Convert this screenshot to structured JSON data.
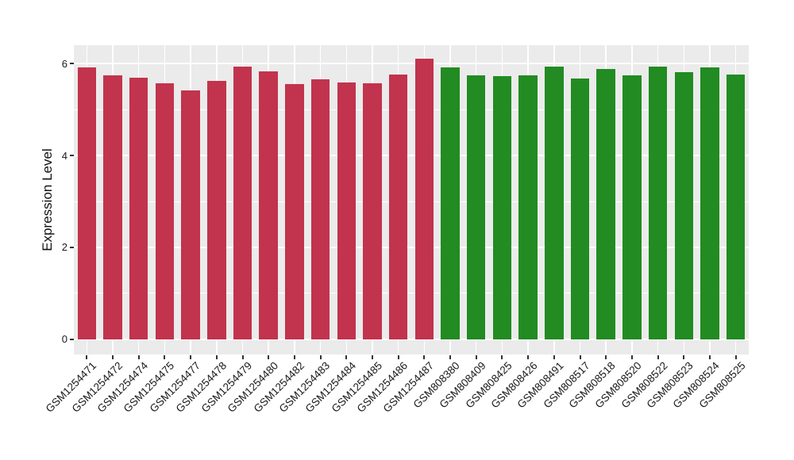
{
  "chart_data": {
    "type": "bar",
    "title": "",
    "xlabel": "",
    "ylabel": "Expression Level",
    "ylim": [
      -0.33,
      6.4
    ],
    "yticks": [
      0,
      2,
      4,
      6
    ],
    "yticks_minor": [
      1,
      3,
      5
    ],
    "grid": true,
    "legend": false,
    "panel_bg_color": "#EBEBEB",
    "grid_color": "#FFFFFF",
    "series": [
      {
        "name": "red-group",
        "color": "#C2334D",
        "categories": [
          "GSM1254471",
          "GSM1254472",
          "GSM1254474",
          "GSM1254475",
          "GSM1254477",
          "GSM1254478",
          "GSM1254479",
          "GSM1254480",
          "GSM1254482",
          "GSM1254483",
          "GSM1254484",
          "GSM1254485",
          "GSM1254486",
          "GSM1254487"
        ],
        "values": [
          5.91,
          5.75,
          5.69,
          5.57,
          5.42,
          5.62,
          5.93,
          5.83,
          5.55,
          5.66,
          5.59,
          5.57,
          5.76,
          6.1
        ]
      },
      {
        "name": "green-group",
        "color": "#228B22",
        "categories": [
          "GSM808380",
          "GSM808409",
          "GSM808425",
          "GSM808426",
          "GSM808491",
          "GSM808517",
          "GSM808518",
          "GSM808520",
          "GSM808522",
          "GSM808523",
          "GSM808524",
          "GSM808525"
        ],
        "values": [
          5.91,
          5.74,
          5.73,
          5.74,
          5.93,
          5.68,
          5.89,
          5.75,
          5.94,
          5.82,
          5.91,
          5.77
        ]
      }
    ]
  }
}
